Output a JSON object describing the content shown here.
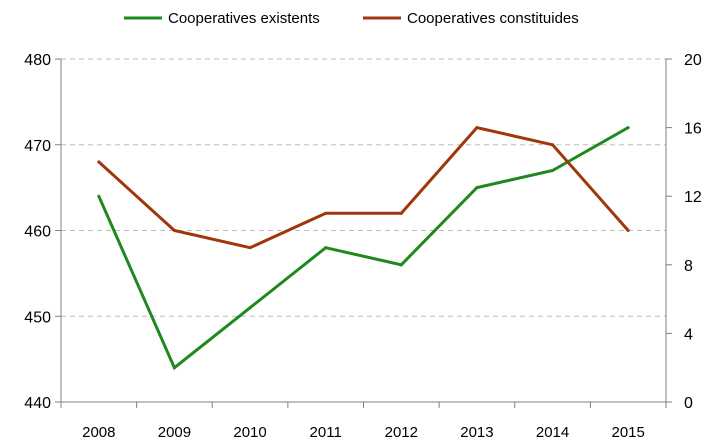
{
  "chart_data": {
    "type": "line",
    "categories": [
      "2008",
      "2009",
      "2010",
      "2011",
      "2012",
      "2013",
      "2014",
      "2015"
    ],
    "series": [
      {
        "name": "Cooperatives existents",
        "axis": "left",
        "color": "#1e8a1e",
        "values": [
          464,
          444,
          451,
          458,
          456,
          465,
          467,
          472
        ]
      },
      {
        "name": "Cooperatives constituides",
        "axis": "right",
        "color": "#a0360b",
        "values": [
          14,
          10,
          9,
          11,
          11,
          16,
          15,
          10
        ]
      }
    ],
    "y_left": {
      "min": 440,
      "max": 480,
      "ticks": [
        "440",
        "450",
        "460",
        "470",
        "480"
      ]
    },
    "y_right": {
      "min": 0,
      "max": 20,
      "ticks": [
        "0",
        "4",
        "8",
        "12",
        "16",
        "20"
      ]
    },
    "grid": "horizontal dashed",
    "legend": "top-center",
    "title": "",
    "xlabel": "",
    "ylabel": ""
  }
}
